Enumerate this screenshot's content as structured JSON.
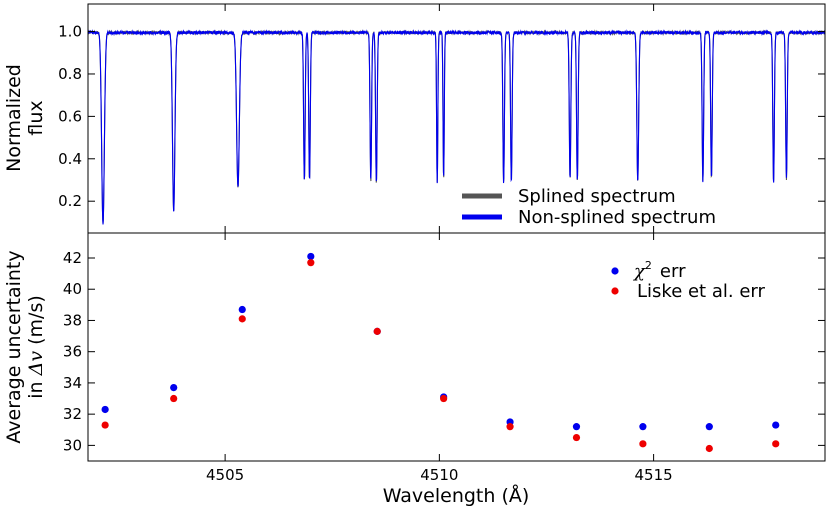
{
  "colors": {
    "splined": "#555555",
    "nonsplined": "#0000ee",
    "chi2": "#0000ee",
    "liske": "#ee0000"
  },
  "chart_data": [
    {
      "type": "line",
      "panel": "top",
      "ylabel_line1": "Normalized",
      "ylabel_line2": "flux",
      "xlim": [
        4501.8,
        4519.0
      ],
      "ylim": [
        0.05,
        1.13
      ],
      "yticks": [
        0.2,
        0.4,
        0.6,
        0.8,
        1.0
      ],
      "ytick_labels": [
        "0.2",
        "0.4",
        "0.6",
        "0.8",
        "1.0"
      ],
      "continuum": 0.995,
      "legend": {
        "position": "lower-right",
        "entries": [
          {
            "name": "Splined spectrum",
            "color_key": "splined"
          },
          {
            "name": "Non-splined spectrum",
            "color_key": "nonsplined"
          }
        ]
      },
      "absorption_lines": [
        {
          "center": 4502.15,
          "depth": 0.9,
          "width": 0.045
        },
        {
          "center": 4503.8,
          "depth": 0.84,
          "width": 0.04
        },
        {
          "center": 4505.3,
          "depth": 0.73,
          "width": 0.045
        },
        {
          "center": 4506.85,
          "depth": 0.7,
          "width": 0.025
        },
        {
          "center": 4506.97,
          "depth": 0.7,
          "width": 0.025
        },
        {
          "center": 4508.4,
          "depth": 0.7,
          "width": 0.025
        },
        {
          "center": 4508.53,
          "depth": 0.71,
          "width": 0.025
        },
        {
          "center": 4509.95,
          "depth": 0.71,
          "width": 0.02
        },
        {
          "center": 4510.1,
          "depth": 0.69,
          "width": 0.02
        },
        {
          "center": 4511.5,
          "depth": 0.71,
          "width": 0.025
        },
        {
          "center": 4511.68,
          "depth": 0.7,
          "width": 0.025
        },
        {
          "center": 4513.05,
          "depth": 0.69,
          "width": 0.025
        },
        {
          "center": 4513.22,
          "depth": 0.7,
          "width": 0.025
        },
        {
          "center": 4514.63,
          "depth": 0.7,
          "width": 0.03
        },
        {
          "center": 4516.15,
          "depth": 0.7,
          "width": 0.025
        },
        {
          "center": 4516.35,
          "depth": 0.69,
          "width": 0.025
        },
        {
          "center": 4517.8,
          "depth": 0.71,
          "width": 0.025
        },
        {
          "center": 4518.1,
          "depth": 0.69,
          "width": 0.025
        }
      ]
    },
    {
      "type": "scatter",
      "panel": "bottom",
      "xlabel": "Wavelength (Å)",
      "ylabel_line1": "Average uncertainty",
      "ylabel_line2_prefix": "in ",
      "ylabel_line2_math": "Δv",
      "ylabel_line2_suffix": " (m/s)",
      "xlim": [
        4501.8,
        4519.0
      ],
      "ylim": [
        29.0,
        43.6
      ],
      "xticks": [
        4505,
        4510,
        4515
      ],
      "xtick_labels": [
        "4505",
        "4510",
        "4515"
      ],
      "yticks": [
        30,
        32,
        34,
        36,
        38,
        40,
        42
      ],
      "ytick_labels": [
        "30",
        "32",
        "34",
        "36",
        "38",
        "40",
        "42"
      ],
      "legend": {
        "position": "upper-right",
        "chi2_symbol": "χ",
        "chi2_exp": "2",
        "chi2_suffix": "err",
        "liske_label": "Liske et al. err"
      },
      "series": [
        {
          "name": "chi2 err",
          "color_key": "chi2",
          "x": [
            4502.2,
            4503.8,
            4505.4,
            4507.0,
            4508.55,
            4510.1,
            4511.65,
            4513.2,
            4514.75,
            4516.3,
            4517.85
          ],
          "values": [
            32.3,
            33.7,
            38.7,
            42.1,
            37.3,
            33.1,
            31.5,
            31.2,
            31.2,
            31.2,
            31.3
          ]
        },
        {
          "name": "Liske et al. err",
          "color_key": "liske",
          "x": [
            4502.2,
            4503.8,
            4505.4,
            4507.0,
            4508.55,
            4510.1,
            4511.65,
            4513.2,
            4514.75,
            4516.3,
            4517.85
          ],
          "values": [
            31.3,
            33.0,
            38.1,
            41.7,
            37.3,
            33.0,
            31.2,
            30.5,
            30.1,
            29.8,
            30.1
          ]
        }
      ]
    }
  ]
}
